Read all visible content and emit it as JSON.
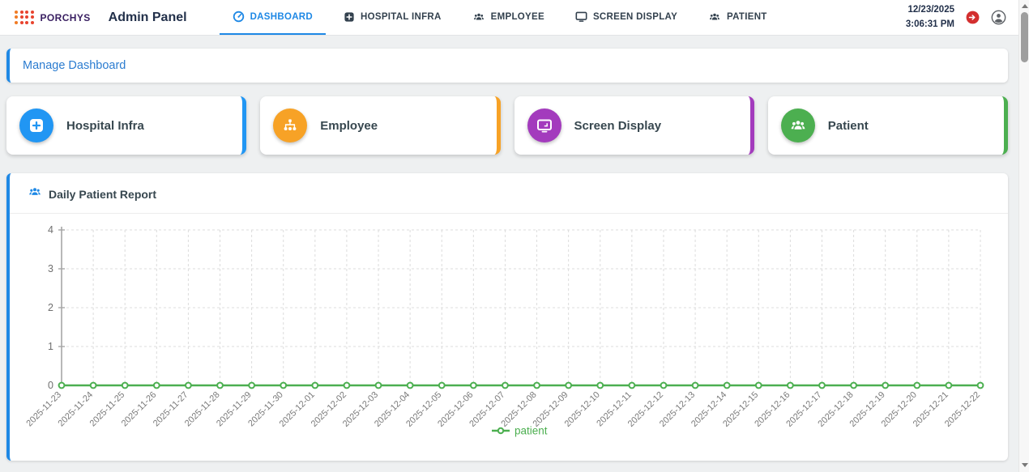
{
  "brand": {
    "name": "PORCHYS"
  },
  "header": {
    "title": "Admin Panel",
    "tabs": [
      {
        "label": "DASHBOARD",
        "icon": "dashboard-icon",
        "active": true
      },
      {
        "label": "HOSPITAL INFRA",
        "icon": "hospital-icon",
        "active": false
      },
      {
        "label": "EMPLOYEE",
        "icon": "employee-icon",
        "active": false
      },
      {
        "label": "SCREEN DISPLAY",
        "icon": "monitor-icon",
        "active": false
      },
      {
        "label": "PATIENT",
        "icon": "patient-icon",
        "active": false
      }
    ],
    "datetime": {
      "date": "12/23/2025",
      "time": "3:06:31 PM"
    }
  },
  "manage": {
    "label": "Manage Dashboard"
  },
  "shortcut_cards": [
    {
      "label": "Hospital Infra",
      "icon": "hospital-plus-icon",
      "color": "#2196f3"
    },
    {
      "label": "Employee",
      "icon": "org-tree-icon",
      "color": "#f7a226"
    },
    {
      "label": "Screen Display",
      "icon": "monitor-card-icon",
      "color": "#a33bbd"
    },
    {
      "label": "Patient",
      "icon": "group-card-icon",
      "color": "#4caf50"
    }
  ],
  "report": {
    "title": "Daily Patient Report"
  },
  "colors": {
    "accent_blue": "#1e88e5",
    "logo_red": "#e8432e",
    "logo_orange": "#f07b24",
    "logout_red": "#d32f2f",
    "axis_gray": "#a6a6a6",
    "grid_gray": "#dcdcdc",
    "label_gray": "#6f6f6f"
  },
  "chart_data": {
    "type": "line",
    "title": "Daily Patient Report",
    "x": [
      "2025-11-23",
      "2025-11-24",
      "2025-11-25",
      "2025-11-26",
      "2025-11-27",
      "2025-11-28",
      "2025-11-29",
      "2025-11-30",
      "2025-12-01",
      "2025-12-02",
      "2025-12-03",
      "2025-12-04",
      "2025-12-05",
      "2025-12-06",
      "2025-12-07",
      "2025-12-08",
      "2025-12-09",
      "2025-12-10",
      "2025-12-11",
      "2025-12-12",
      "2025-12-13",
      "2025-12-14",
      "2025-12-15",
      "2025-12-16",
      "2025-12-17",
      "2025-12-18",
      "2025-12-19",
      "2025-12-20",
      "2025-12-21",
      "2025-12-22"
    ],
    "series": [
      {
        "name": "patient",
        "color": "#4caf50",
        "values": [
          0,
          0,
          0,
          0,
          0,
          0,
          0,
          0,
          0,
          0,
          0,
          0,
          0,
          0,
          0,
          0,
          0,
          0,
          0,
          0,
          0,
          0,
          0,
          0,
          0,
          0,
          0,
          0,
          0,
          0
        ]
      }
    ],
    "xlabel": "",
    "ylabel": "",
    "ylim": [
      0,
      4
    ],
    "yticks": [
      0,
      1,
      2,
      3,
      4
    ],
    "grid": true,
    "legend_position": "bottom-center"
  }
}
